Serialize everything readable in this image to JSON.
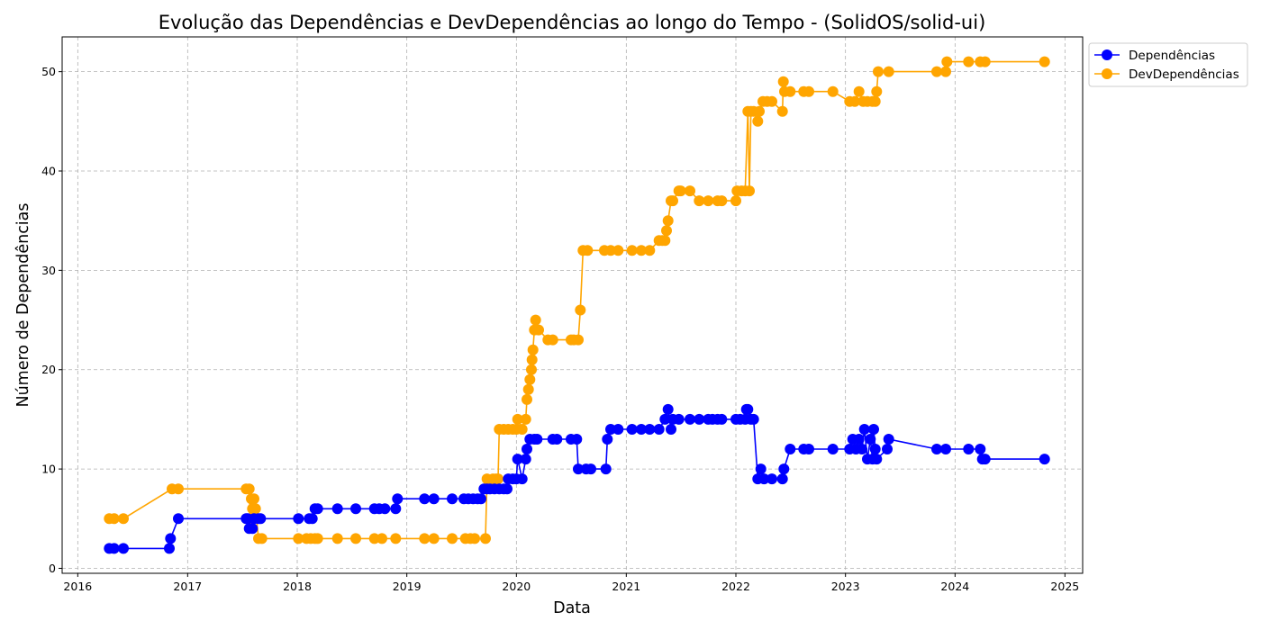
{
  "chart_data": {
    "type": "line",
    "title": "Evolução das Dependências e DevDependências ao longo do Tempo - (SolidOS/solid-ui)",
    "xlabel": "Data",
    "ylabel": "Número de Dependências",
    "x_ticks": [
      "2016",
      "2017",
      "2018",
      "2019",
      "2020",
      "2021",
      "2022",
      "2023",
      "2024",
      "2025"
    ],
    "y_ticks": [
      "0",
      "10",
      "20",
      "30",
      "40",
      "50"
    ],
    "xlim": [
      "2015-11-10",
      "2025-03-01"
    ],
    "ylim": [
      -0.5,
      53.5
    ],
    "grid": true,
    "legend_position": "upper-left-outside-right",
    "series": [
      {
        "name": "Dependências",
        "color": "#0000ff",
        "points": [
          [
            "2016-04-15",
            2
          ],
          [
            "2016-05-01",
            2
          ],
          [
            "2016-06-01",
            2
          ],
          [
            "2016-11-01",
            2
          ],
          [
            "2016-11-05",
            3
          ],
          [
            "2016-12-01",
            5
          ],
          [
            "2017-07-15",
            5
          ],
          [
            "2017-07-20",
            5
          ],
          [
            "2017-07-25",
            4
          ],
          [
            "2017-08-05",
            4
          ],
          [
            "2017-08-10",
            5
          ],
          [
            "2017-08-25",
            5
          ],
          [
            "2017-09-01",
            5
          ],
          [
            "2018-01-05",
            5
          ],
          [
            "2018-02-10",
            5
          ],
          [
            "2018-02-20",
            5
          ],
          [
            "2018-03-01",
            6
          ],
          [
            "2018-03-10",
            6
          ],
          [
            "2018-05-15",
            6
          ],
          [
            "2018-07-15",
            6
          ],
          [
            "2018-09-15",
            6
          ],
          [
            "2018-10-01",
            6
          ],
          [
            "2018-10-20",
            6
          ],
          [
            "2018-11-25",
            6
          ],
          [
            "2018-12-01",
            7
          ],
          [
            "2019-03-01",
            7
          ],
          [
            "2019-04-01",
            7
          ],
          [
            "2019-06-01",
            7
          ],
          [
            "2019-07-10",
            7
          ],
          [
            "2019-07-25",
            7
          ],
          [
            "2019-08-10",
            7
          ],
          [
            "2019-08-25",
            7
          ],
          [
            "2019-09-05",
            7
          ],
          [
            "2019-09-15",
            8
          ],
          [
            "2019-09-25",
            8
          ],
          [
            "2019-10-05",
            8
          ],
          [
            "2019-10-20",
            8
          ],
          [
            "2019-11-05",
            8
          ],
          [
            "2019-11-20",
            8
          ],
          [
            "2019-12-01",
            8
          ],
          [
            "2019-12-05",
            9
          ],
          [
            "2019-12-20",
            9
          ],
          [
            "2020-01-01",
            9
          ],
          [
            "2020-01-05",
            11
          ],
          [
            "2020-01-20",
            9
          ],
          [
            "2020-02-01",
            11
          ],
          [
            "2020-02-05",
            12
          ],
          [
            "2020-02-15",
            13
          ],
          [
            "2020-03-01",
            13
          ],
          [
            "2020-03-10",
            13
          ],
          [
            "2020-05-01",
            13
          ],
          [
            "2020-05-15",
            13
          ],
          [
            "2020-07-01",
            13
          ],
          [
            "2020-07-20",
            13
          ],
          [
            "2020-07-25",
            10
          ],
          [
            "2020-08-20",
            10
          ],
          [
            "2020-09-05",
            10
          ],
          [
            "2020-10-25",
            10
          ],
          [
            "2020-10-30",
            13
          ],
          [
            "2020-11-10",
            14
          ],
          [
            "2020-12-05",
            14
          ],
          [
            "2021-01-20",
            14
          ],
          [
            "2021-02-20",
            14
          ],
          [
            "2021-03-20",
            14
          ],
          [
            "2021-04-20",
            14
          ],
          [
            "2021-05-10",
            15
          ],
          [
            "2021-05-20",
            16
          ],
          [
            "2021-05-30",
            14
          ],
          [
            "2021-06-05",
            15
          ],
          [
            "2021-06-25",
            15
          ],
          [
            "2021-08-01",
            15
          ],
          [
            "2021-09-01",
            15
          ],
          [
            "2021-10-01",
            15
          ],
          [
            "2021-10-15",
            15
          ],
          [
            "2021-11-01",
            15
          ],
          [
            "2021-11-15",
            15
          ],
          [
            "2022-01-01",
            15
          ],
          [
            "2022-01-15",
            15
          ],
          [
            "2022-02-01",
            15
          ],
          [
            "2022-02-05",
            16
          ],
          [
            "2022-02-10",
            16
          ],
          [
            "2022-02-20",
            15
          ],
          [
            "2022-03-01",
            15
          ],
          [
            "2022-03-15",
            9
          ],
          [
            "2022-03-25",
            10
          ],
          [
            "2022-04-05",
            9
          ],
          [
            "2022-05-01",
            9
          ],
          [
            "2022-06-05",
            9
          ],
          [
            "2022-06-10",
            10
          ],
          [
            "2022-07-01",
            12
          ],
          [
            "2022-08-15",
            12
          ],
          [
            "2022-09-01",
            12
          ],
          [
            "2022-11-20",
            12
          ],
          [
            "2023-01-15",
            12
          ],
          [
            "2023-01-25",
            13
          ],
          [
            "2023-02-05",
            12
          ],
          [
            "2023-02-15",
            13
          ],
          [
            "2023-02-25",
            12
          ],
          [
            "2023-03-05",
            14
          ],
          [
            "2023-03-15",
            11
          ],
          [
            "2023-03-25",
            13
          ],
          [
            "2023-04-01",
            11
          ],
          [
            "2023-04-05",
            14
          ],
          [
            "2023-04-10",
            12
          ],
          [
            "2023-04-15",
            11
          ],
          [
            "2023-05-20",
            12
          ],
          [
            "2023-05-25",
            13
          ],
          [
            "2023-11-01",
            12
          ],
          [
            "2023-12-01",
            12
          ],
          [
            "2024-02-15",
            12
          ],
          [
            "2024-03-25",
            12
          ],
          [
            "2024-04-01",
            11
          ],
          [
            "2024-04-10",
            11
          ],
          [
            "2024-10-25",
            11
          ]
        ]
      },
      {
        "name": "DevDependências",
        "color": "#ffa500",
        "points": [
          [
            "2016-04-15",
            5
          ],
          [
            "2016-05-01",
            5
          ],
          [
            "2016-06-01",
            5
          ],
          [
            "2016-11-10",
            8
          ],
          [
            "2016-12-01",
            8
          ],
          [
            "2017-07-15",
            8
          ],
          [
            "2017-07-25",
            8
          ],
          [
            "2017-07-28",
            5
          ],
          [
            "2017-08-01",
            7
          ],
          [
            "2017-08-05",
            6
          ],
          [
            "2017-08-10",
            7
          ],
          [
            "2017-08-15",
            6
          ],
          [
            "2017-08-25",
            3
          ],
          [
            "2017-09-05",
            3
          ],
          [
            "2018-01-05",
            3
          ],
          [
            "2018-02-01",
            3
          ],
          [
            "2018-02-15",
            3
          ],
          [
            "2018-03-01",
            3
          ],
          [
            "2018-03-10",
            3
          ],
          [
            "2018-05-15",
            3
          ],
          [
            "2018-07-15",
            3
          ],
          [
            "2018-09-15",
            3
          ],
          [
            "2018-10-10",
            3
          ],
          [
            "2018-11-25",
            3
          ],
          [
            "2019-03-01",
            3
          ],
          [
            "2019-04-01",
            3
          ],
          [
            "2019-06-01",
            3
          ],
          [
            "2019-07-15",
            3
          ],
          [
            "2019-08-01",
            3
          ],
          [
            "2019-08-15",
            3
          ],
          [
            "2019-09-20",
            3
          ],
          [
            "2019-09-25",
            9
          ],
          [
            "2019-10-15",
            9
          ],
          [
            "2019-10-25",
            9
          ],
          [
            "2019-11-01",
            9
          ],
          [
            "2019-11-05",
            14
          ],
          [
            "2019-11-20",
            14
          ],
          [
            "2019-12-05",
            14
          ],
          [
            "2019-12-20",
            14
          ],
          [
            "2020-01-01",
            14
          ],
          [
            "2020-01-05",
            15
          ],
          [
            "2020-01-20",
            14
          ],
          [
            "2020-02-01",
            15
          ],
          [
            "2020-02-05",
            17
          ],
          [
            "2020-02-10",
            18
          ],
          [
            "2020-02-15",
            19
          ],
          [
            "2020-02-20",
            20
          ],
          [
            "2020-02-22",
            21
          ],
          [
            "2020-02-25",
            22
          ],
          [
            "2020-03-01",
            24
          ],
          [
            "2020-03-05",
            25
          ],
          [
            "2020-03-15",
            24
          ],
          [
            "2020-04-15",
            23
          ],
          [
            "2020-05-01",
            23
          ],
          [
            "2020-07-01",
            23
          ],
          [
            "2020-07-10",
            23
          ],
          [
            "2020-07-25",
            23
          ],
          [
            "2020-08-01",
            26
          ],
          [
            "2020-08-10",
            32
          ],
          [
            "2020-08-25",
            32
          ],
          [
            "2020-10-20",
            32
          ],
          [
            "2020-11-10",
            32
          ],
          [
            "2020-12-05",
            32
          ],
          [
            "2021-01-20",
            32
          ],
          [
            "2021-02-20",
            32
          ],
          [
            "2021-03-20",
            32
          ],
          [
            "2021-04-20",
            33
          ],
          [
            "2021-05-01",
            33
          ],
          [
            "2021-05-10",
            33
          ],
          [
            "2021-05-15",
            34
          ],
          [
            "2021-05-20",
            35
          ],
          [
            "2021-05-30",
            37
          ],
          [
            "2021-06-05",
            37
          ],
          [
            "2021-06-25",
            38
          ],
          [
            "2021-07-01",
            38
          ],
          [
            "2021-08-01",
            38
          ],
          [
            "2021-09-01",
            37
          ],
          [
            "2021-10-01",
            37
          ],
          [
            "2021-11-01",
            37
          ],
          [
            "2021-11-15",
            37
          ],
          [
            "2022-01-01",
            37
          ],
          [
            "2022-01-05",
            38
          ],
          [
            "2022-01-20",
            38
          ],
          [
            "2022-02-01",
            38
          ],
          [
            "2022-02-10",
            46
          ],
          [
            "2022-02-15",
            38
          ],
          [
            "2022-02-20",
            46
          ],
          [
            "2022-03-01",
            46
          ],
          [
            "2022-03-15",
            45
          ],
          [
            "2022-03-20",
            46
          ],
          [
            "2022-04-01",
            47
          ],
          [
            "2022-04-15",
            47
          ],
          [
            "2022-05-01",
            47
          ],
          [
            "2022-06-05",
            46
          ],
          [
            "2022-06-08",
            49
          ],
          [
            "2022-06-12",
            48
          ],
          [
            "2022-07-01",
            48
          ],
          [
            "2022-08-15",
            48
          ],
          [
            "2022-09-01",
            48
          ],
          [
            "2022-11-20",
            48
          ],
          [
            "2023-01-15",
            47
          ],
          [
            "2023-02-01",
            47
          ],
          [
            "2023-02-15",
            48
          ],
          [
            "2023-03-01",
            47
          ],
          [
            "2023-03-15",
            47
          ],
          [
            "2023-04-01",
            47
          ],
          [
            "2023-04-10",
            47
          ],
          [
            "2023-04-15",
            48
          ],
          [
            "2023-04-20",
            50
          ],
          [
            "2023-05-25",
            50
          ],
          [
            "2023-11-01",
            50
          ],
          [
            "2023-12-01",
            50
          ],
          [
            "2023-12-05",
            51
          ],
          [
            "2024-02-15",
            51
          ],
          [
            "2024-03-25",
            51
          ],
          [
            "2024-04-10",
            51
          ],
          [
            "2024-10-25",
            51
          ]
        ]
      }
    ]
  }
}
